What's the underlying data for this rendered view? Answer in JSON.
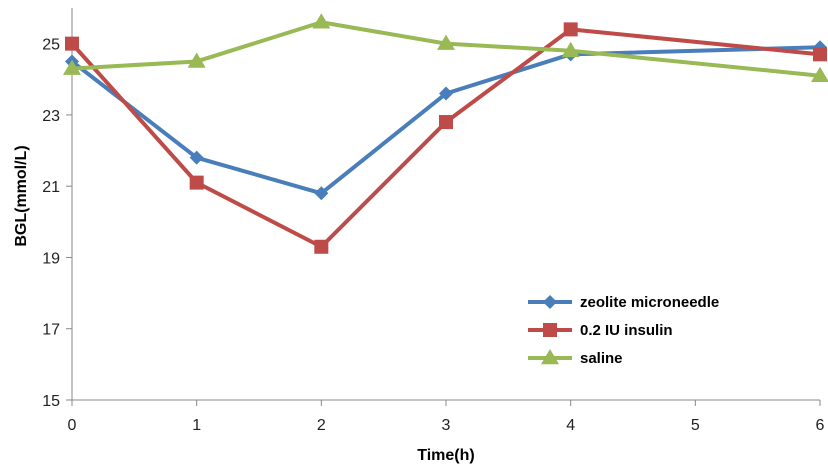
{
  "chart_data": {
    "type": "line",
    "title": "",
    "xlabel": "Time(h)",
    "ylabel": "BGL(mmol/L)",
    "x": [
      0,
      1,
      2,
      3,
      4,
      5,
      6
    ],
    "xlim": [
      0,
      6
    ],
    "ylim": [
      15,
      26
    ],
    "yticks": [
      15,
      17,
      19,
      21,
      23,
      25
    ],
    "grid": false,
    "legend_position": "lower-right",
    "series": [
      {
        "name": "zeolite microneedle",
        "color": "#4a7ebb",
        "marker": "diamond",
        "points": [
          [
            0,
            24.5
          ],
          [
            1,
            21.8
          ],
          [
            2,
            20.8
          ],
          [
            3,
            23.6
          ],
          [
            4,
            24.7
          ],
          [
            6,
            24.9
          ]
        ]
      },
      {
        "name": "0.2 IU insulin",
        "color": "#be4b48",
        "marker": "square",
        "points": [
          [
            0,
            25.0
          ],
          [
            1,
            21.1
          ],
          [
            2,
            19.3
          ],
          [
            3,
            22.8
          ],
          [
            4,
            25.4
          ],
          [
            6,
            24.7
          ]
        ]
      },
      {
        "name": "saline",
        "color": "#98b954",
        "marker": "triangle",
        "points": [
          [
            0,
            24.3
          ],
          [
            1,
            24.5
          ],
          [
            2,
            25.6
          ],
          [
            3,
            25.0
          ],
          [
            4,
            24.8
          ],
          [
            6,
            24.1
          ]
        ]
      }
    ]
  }
}
